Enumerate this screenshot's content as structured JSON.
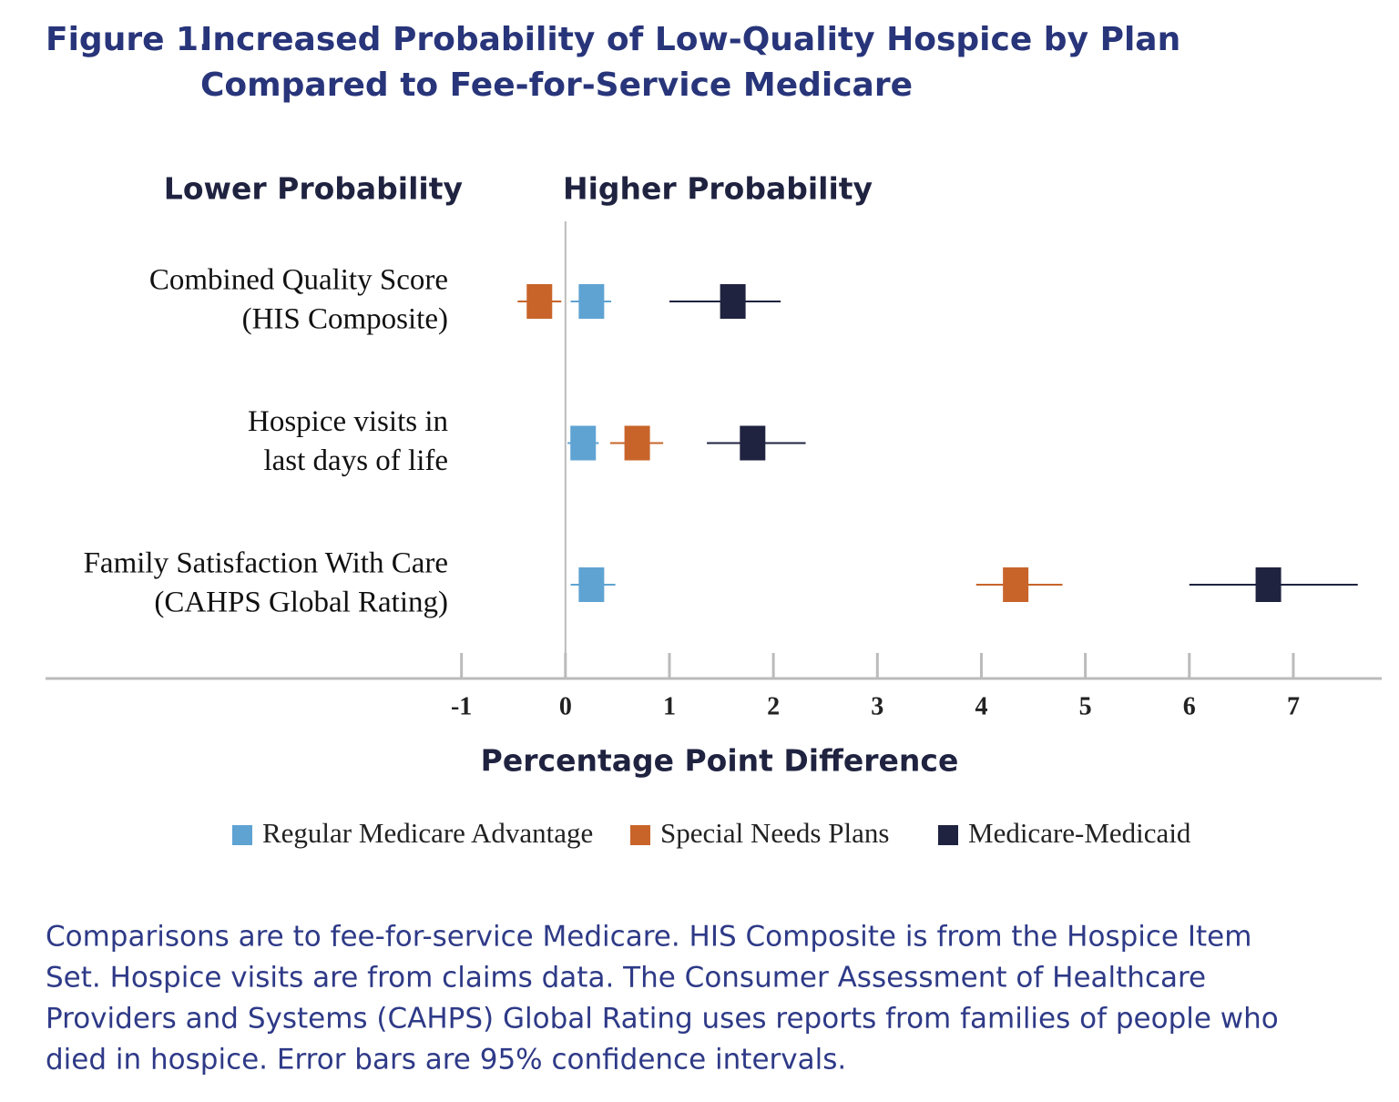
{
  "chart_data": {
    "type": "forest",
    "figure_label": "Figure 1.",
    "title": [
      "Increased Probability of Low-Quality Hospice by Plan",
      "Compared to Fee-for-Service Medicare"
    ],
    "annotations": [
      "Lower Probability",
      "Higher Probability"
    ],
    "categories": [
      [
        "Combined Quality Score",
        "(HIS Composite)"
      ],
      [
        "Hospice visits in",
        "last days of life"
      ],
      [
        "Family Satisfaction With Care",
        "(CAHPS Global Rating)"
      ]
    ],
    "series": [
      {
        "name": "Regular Medicare Advantage",
        "color": "#5fa3d3",
        "values": [
          0.25,
          0.17,
          0.25
        ],
        "lower": [
          0.05,
          0.02,
          0.05
        ],
        "upper": [
          0.44,
          0.32,
          0.48
        ]
      },
      {
        "name": "Special Needs Plans",
        "color": "#c8642a",
        "values": [
          -0.25,
          0.69,
          4.33
        ],
        "lower": [
          -0.46,
          0.43,
          3.95
        ],
        "upper": [
          -0.04,
          0.94,
          4.78
        ]
      },
      {
        "name": "Medicare-Medicaid",
        "color": "#1f2340",
        "values": [
          1.61,
          1.8,
          6.76
        ],
        "lower": [
          1.0,
          1.36,
          6.0
        ],
        "upper": [
          2.07,
          2.31,
          7.62
        ]
      }
    ],
    "xlabel": "Percentage Point Difference",
    "xlim": [
      -5,
      7.85
    ],
    "xticks": [
      -1,
      0,
      1,
      2,
      3,
      4,
      5,
      6,
      7
    ],
    "reference_line": 0,
    "note": [
      "Comparisons are to fee-for-service Medicare. HIS Composite is from the Hospice Item",
      "Set. Hospice visits are from claims data. The Consumer Assessment of Healthcare",
      "Providers and Systems (CAHPS) Global Rating uses reports from families of people who",
      "died in hospice. Error bars are 95% confidence intervals."
    ]
  }
}
